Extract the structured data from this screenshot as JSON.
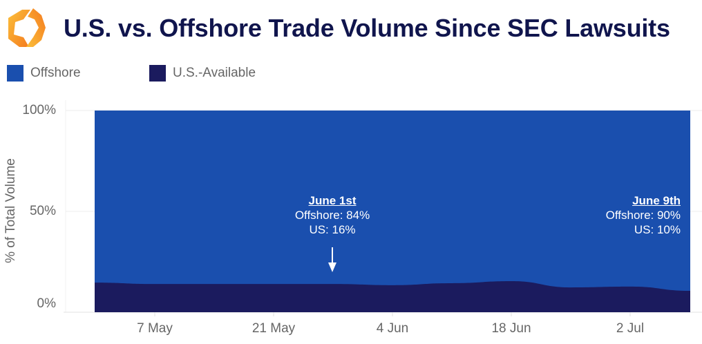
{
  "header": {
    "title": "U.S. vs. Offshore Trade Volume Since SEC Lawsuits",
    "logo_icon": "orange-hexagon-brackets-logo"
  },
  "legend": [
    {
      "label": "Offshore",
      "color": "#1a4fae"
    },
    {
      "label": "U.S.-Available",
      "color": "#1b1b5e"
    }
  ],
  "axes": {
    "ylabel": "% of Total Volume",
    "yticks": [
      "100%",
      "50%",
      "0%"
    ],
    "xticks": [
      "7 May",
      "21 May",
      "4 Jun",
      "18 Jun",
      "2 Jul"
    ]
  },
  "annotations": [
    {
      "head": "June 1st",
      "line1": "Offshore: 84%",
      "line2": "US: 16%",
      "arrow": "down-arrow-icon"
    },
    {
      "head": "June 9th",
      "line1": "Offshore: 90%",
      "line2": "US: 10%"
    }
  ],
  "chart_data": {
    "type": "area",
    "stacked": true,
    "normalized": true,
    "title": "U.S. vs. Offshore Trade Volume Since SEC Lawsuits",
    "xlabel": "",
    "ylabel": "% of Total Volume",
    "ylim": [
      0,
      100
    ],
    "grid": true,
    "legend_position": "top-left",
    "x": [
      "30 Apr",
      "7 May",
      "14 May",
      "21 May",
      "28 May",
      "4 Jun",
      "11 Jun",
      "18 Jun",
      "25 Jun",
      "2 Jul",
      "9 Jul"
    ],
    "series": [
      {
        "name": "U.S.-Available",
        "color": "#1b1b5e",
        "values": [
          14.7,
          14.0,
          14.0,
          14.0,
          14.0,
          13.4,
          14.4,
          15.4,
          12.3,
          12.7,
          10.6
        ]
      },
      {
        "name": "Offshore",
        "color": "#1a4fae",
        "values": [
          85.3,
          86.0,
          86.0,
          86.0,
          86.0,
          86.6,
          85.6,
          84.6,
          87.7,
          87.3,
          89.4
        ]
      }
    ],
    "annotations": [
      {
        "text": "June 1st — Offshore: 84%, US: 16%"
      },
      {
        "text": "June 9th — Offshore: 90%, US: 10%"
      }
    ]
  }
}
